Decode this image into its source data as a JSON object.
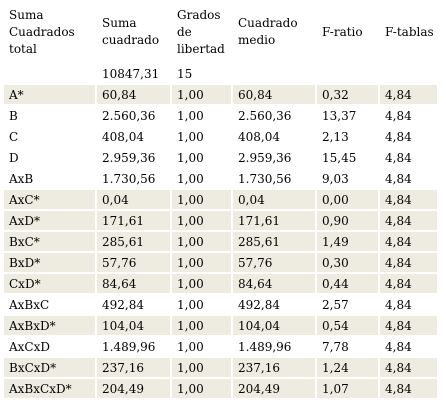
{
  "table": {
    "headers": [
      "Suma Cuadrados total",
      "Suma cuadrado",
      "Grados de libertad",
      "Cuadrado medio",
      "F-ratio",
      "F-tablas"
    ],
    "totals": {
      "suma_cuadrado": "10847,31",
      "grados_libertad": "15"
    },
    "rows": [
      {
        "source": "A*",
        "ss": "60,84",
        "df": "1,00",
        "ms": "60,84",
        "f": "0,32",
        "ft": "4,84",
        "shaded": true
      },
      {
        "source": "B",
        "ss": "2.560,36",
        "df": "1,00",
        "ms": "2.560,36",
        "f": "13,37",
        "ft": "4,84",
        "shaded": false
      },
      {
        "source": "C",
        "ss": "408,04",
        "df": "1,00",
        "ms": "408,04",
        "f": "2,13",
        "ft": "4,84",
        "shaded": false
      },
      {
        "source": "D",
        "ss": "2.959,36",
        "df": "1,00",
        "ms": "2.959,36",
        "f": "15,45",
        "ft": "4,84",
        "shaded": false
      },
      {
        "source": "AxB",
        "ss": "1.730,56",
        "df": "1,00",
        "ms": "1.730,56",
        "f": "9,03",
        "ft": "4,84",
        "shaded": false
      },
      {
        "source": "AxC*",
        "ss": "0,04",
        "df": "1,00",
        "ms": "0,04",
        "f": "0,00",
        "ft": "4,84",
        "shaded": true
      },
      {
        "source": "AxD*",
        "ss": "171,61",
        "df": "1,00",
        "ms": "171,61",
        "f": "0,90",
        "ft": "4,84",
        "shaded": true
      },
      {
        "source": "BxC*",
        "ss": "285,61",
        "df": "1,00",
        "ms": "285,61",
        "f": "1,49",
        "ft": "4,84",
        "shaded": true
      },
      {
        "source": "BxD*",
        "ss": "57,76",
        "df": "1,00",
        "ms": "57,76",
        "f": "0,30",
        "ft": "4,84",
        "shaded": true
      },
      {
        "source": "CxD*",
        "ss": "84,64",
        "df": "1,00",
        "ms": "84,64",
        "f": "0,44",
        "ft": "4,84",
        "shaded": true
      },
      {
        "source": "AxBxC",
        "ss": "492,84",
        "df": "1,00",
        "ms": "492,84",
        "f": "2,57",
        "ft": "4,84",
        "shaded": false
      },
      {
        "source": "AxBxD*",
        "ss": "104,04",
        "df": "1,00",
        "ms": "104,04",
        "f": "0,54",
        "ft": "4,84",
        "shaded": true
      },
      {
        "source": "AxCxD",
        "ss": "1.489,96",
        "df": "1,00",
        "ms": "1.489,96",
        "f": "7,78",
        "ft": "4,84",
        "shaded": false
      },
      {
        "source": "BxCxD*",
        "ss": "237,16",
        "df": "1,00",
        "ms": "237,16",
        "f": "1,24",
        "ft": "4,84",
        "shaded": true
      },
      {
        "source": "AxBxCxD*",
        "ss": "204,49",
        "df": "1,00",
        "ms": "204,49",
        "f": "1,07",
        "ft": "4,84",
        "shaded": true
      }
    ]
  },
  "colors": {
    "shaded_row": "#eeece1",
    "background": "#ffffff",
    "text": "#000000"
  }
}
